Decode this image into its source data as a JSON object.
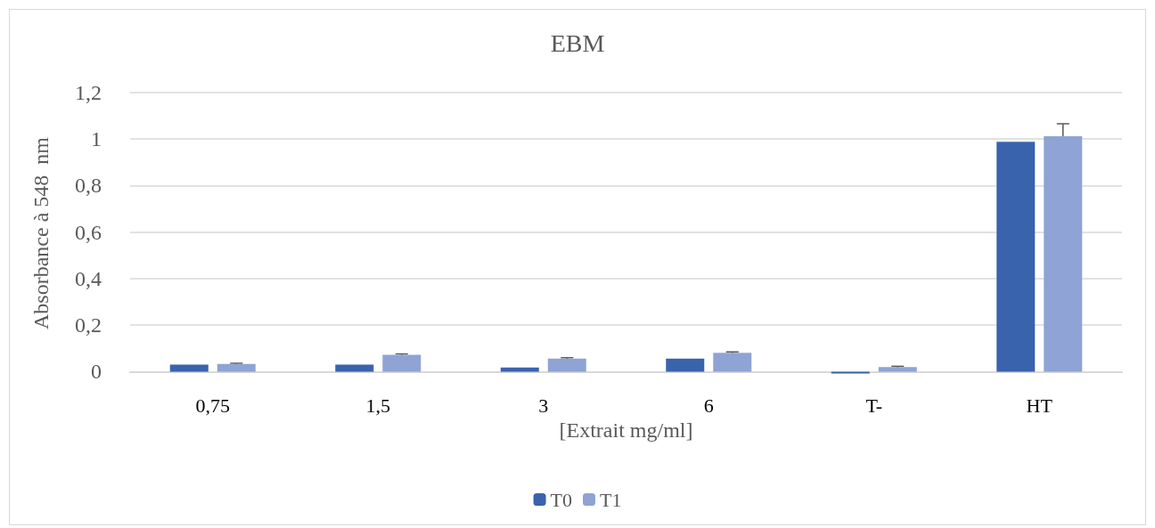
{
  "chart_data": {
    "type": "bar",
    "title": "EBM",
    "xlabel": "[Extrait mg/ml]",
    "ylabel": "Absorbance à 548  nm",
    "categories": [
      "0,75",
      "1,5",
      "3",
      "6",
      "T-",
      "HT"
    ],
    "series": [
      {
        "name": "T0",
        "color": "#3a63ad",
        "values": [
          0.03,
          0.03,
          0.018,
          0.056,
          -0.008,
          0.988
        ]
      },
      {
        "name": "T1",
        "color": "#8fa3d4",
        "values": [
          0.033,
          0.072,
          0.056,
          0.081,
          0.02,
          1.012
        ],
        "errors": [
          0.003,
          0.004,
          0.004,
          0.004,
          0.003,
          0.054
        ]
      }
    ],
    "ylim": [
      -0.01,
      1.2
    ],
    "yticks": [
      0,
      {
        "value": 0.2,
        "label": "0,2"
      },
      {
        "value": 0.4,
        "label": "0,4"
      },
      {
        "value": 0.6,
        "label": "0,6"
      },
      {
        "value": 0.8,
        "label": "0,8"
      },
      1,
      {
        "value": 1.2,
        "label": "1,2"
      }
    ],
    "grid": "y",
    "legend": "bottom"
  }
}
